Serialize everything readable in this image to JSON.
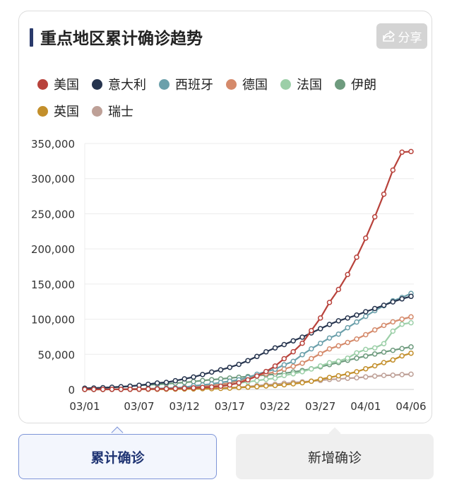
{
  "card": {
    "title": "重点地区累计确诊趋势",
    "share_label": "分享"
  },
  "tabs": {
    "cumulative": "累计确诊",
    "new": "新增确诊"
  },
  "chart_data": {
    "type": "line",
    "title": "重点地区累计确诊趋势",
    "xlabel": "",
    "ylabel": "",
    "ylim": [
      0,
      350000
    ],
    "yticks": [
      0,
      50000,
      100000,
      150000,
      200000,
      250000,
      300000,
      350000
    ],
    "ytick_labels": [
      "0",
      "50,000",
      "100,000",
      "150,000",
      "200,000",
      "250,000",
      "300,000",
      "350,000"
    ],
    "xtick_labels": [
      "03/01",
      "03/07",
      "03/12",
      "03/17",
      "03/22",
      "03/27",
      "04/01",
      "04/06"
    ],
    "grid": true,
    "legend_position": "top",
    "x": [
      "03/01",
      "03/02",
      "03/03",
      "03/04",
      "03/05",
      "03/06",
      "03/07",
      "03/08",
      "03/09",
      "03/10",
      "03/11",
      "03/12",
      "03/13",
      "03/14",
      "03/15",
      "03/16",
      "03/17",
      "03/18",
      "03/19",
      "03/20",
      "03/21",
      "03/22",
      "03/23",
      "03/24",
      "03/25",
      "03/26",
      "03/27",
      "03/28",
      "03/29",
      "03/30",
      "03/31",
      "04/01",
      "04/02",
      "04/03",
      "04/04",
      "04/05",
      "04/06"
    ],
    "series": [
      {
        "name": "美国",
        "color": "#b8423b",
        "values": [
          70,
          100,
          120,
          160,
          230,
          320,
          430,
          560,
          700,
          990,
          1300,
          1700,
          2200,
          2900,
          3500,
          4600,
          6400,
          9400,
          13700,
          19100,
          25500,
          33300,
          43700,
          53700,
          65800,
          83800,
          101700,
          123800,
          142300,
          163500,
          188200,
          215300,
          245600,
          277900,
          312200,
          337600,
          338500
        ]
      },
      {
        "name": "意大利",
        "color": "#26344e",
        "values": [
          1700,
          2000,
          2500,
          3100,
          3900,
          4600,
          5900,
          7400,
          9200,
          10100,
          12500,
          15100,
          17700,
          21200,
          24700,
          27900,
          31500,
          35700,
          41000,
          47000,
          53600,
          59100,
          63900,
          69200,
          74400,
          80500,
          86500,
          92500,
          97700,
          101700,
          105800,
          110600,
          115200,
          119800,
          124600,
          128900,
          132500
        ]
      },
      {
        "name": "西班牙",
        "color": "#6ba0ab",
        "values": [
          80,
          120,
          160,
          220,
          280,
          400,
          500,
          670,
          1200,
          1650,
          2270,
          3150,
          5250,
          6400,
          7800,
          9950,
          11750,
          13700,
          17100,
          21600,
          25400,
          28800,
          35100,
          39900,
          49500,
          57800,
          65700,
          73200,
          78800,
          87900,
          95900,
          104100,
          112100,
          119200,
          126200,
          130800,
          136700
        ]
      },
      {
        "name": "德国",
        "color": "#d58a6b",
        "values": [
          130,
          160,
          200,
          260,
          400,
          640,
          800,
          1000,
          1200,
          1500,
          1900,
          2700,
          3700,
          4600,
          5800,
          7200,
          9300,
          12300,
          15300,
          19800,
          22200,
          24900,
          29100,
          32900,
          37300,
          43900,
          50900,
          57700,
          62100,
          66900,
          71800,
          77900,
          84800,
          91100,
          96100,
          100100,
          103300
        ]
      },
      {
        "name": "法国",
        "color": "#9ccfa8",
        "values": [
          130,
          190,
          210,
          280,
          380,
          650,
          950,
          1130,
          1410,
          1780,
          2280,
          2860,
          3660,
          4500,
          5420,
          6630,
          7730,
          9050,
          10900,
          12600,
          14500,
          16000,
          19900,
          22300,
          25200,
          29200,
          33400,
          38100,
          40200,
          44600,
          52100,
          56900,
          59100,
          65200,
          83000,
          92800,
          94900
        ]
      },
      {
        "name": "伊朗",
        "color": "#6e9b7e",
        "values": [
          980,
          1500,
          2340,
          2920,
          3510,
          4750,
          5820,
          6560,
          7160,
          8040,
          9000,
          10000,
          11300,
          12700,
          13900,
          15000,
          16200,
          17400,
          18400,
          19600,
          20600,
          21600,
          23000,
          24800,
          27000,
          29400,
          32300,
          35400,
          38300,
          41500,
          44600,
          47600,
          50500,
          53200,
          55700,
          58200,
          60500
        ]
      },
      {
        "name": "英国",
        "color": "#c38f2b",
        "values": [
          40,
          40,
          50,
          90,
          120,
          160,
          210,
          270,
          320,
          380,
          460,
          590,
          800,
          1140,
          1140,
          1550,
          1950,
          2630,
          3270,
          3980,
          5020,
          5680,
          6650,
          8080,
          9530,
          11660,
          14540,
          17090,
          19520,
          22140,
          25150,
          29470,
          33720,
          38170,
          41900,
          47800,
          51600
        ]
      },
      {
        "name": "瑞士",
        "color": "#bea097",
        "values": [
          20,
          30,
          50,
          80,
          100,
          210,
          280,
          360,
          370,
          490,
          650,
          860,
          1130,
          1360,
          2200,
          2330,
          2700,
          3020,
          4080,
          5290,
          6580,
          7470,
          8800,
          9880,
          10900,
          11800,
          12900,
          14300,
          14800,
          15900,
          16600,
          17800,
          19000,
          20000,
          20300,
          21100,
          21700
        ]
      }
    ]
  }
}
